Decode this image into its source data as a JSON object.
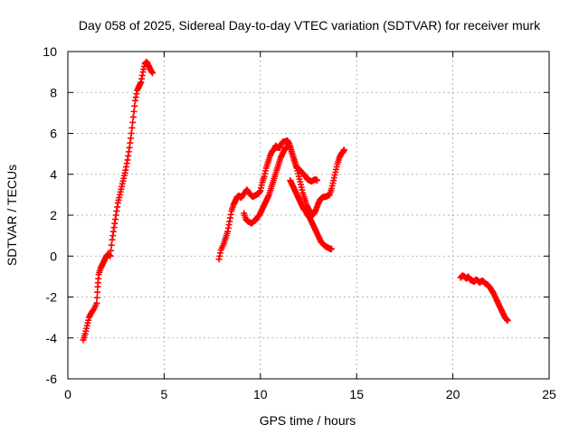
{
  "chart_data": {
    "type": "scatter",
    "title": "Day 058 of 2025, Sidereal Day-to-day VTEC variation (SDTVAR) for receiver murk",
    "xlabel": "GPS time / hours",
    "ylabel": "SDTVAR / TECUs",
    "xlim": [
      0,
      25
    ],
    "ylim": [
      -6,
      10
    ],
    "xticks": [
      0,
      5,
      10,
      15,
      20,
      25
    ],
    "yticks": [
      -6,
      -4,
      -2,
      0,
      2,
      4,
      6,
      8,
      10
    ],
    "grid": true,
    "marker": "+",
    "color": "#ff0000",
    "series": [
      {
        "name": "SDTVAR",
        "segments": [
          [
            [
              0.8,
              -4.1
            ],
            [
              0.9,
              -3.8
            ],
            [
              1.0,
              -3.4
            ],
            [
              1.1,
              -3.0
            ],
            [
              1.2,
              -2.8
            ],
            [
              1.35,
              -2.6
            ],
            [
              1.5,
              -2.3
            ],
            [
              1.55,
              -1.5
            ],
            [
              1.6,
              -0.9
            ],
            [
              1.7,
              -0.6
            ],
            [
              1.8,
              -0.4
            ],
            [
              1.9,
              -0.2
            ],
            [
              2.0,
              0.0
            ],
            [
              2.1,
              0.1
            ],
            [
              2.2,
              0.0
            ],
            [
              2.3,
              0.8
            ],
            [
              2.4,
              1.4
            ],
            [
              2.5,
              2.0
            ],
            [
              2.6,
              2.6
            ],
            [
              2.7,
              3.0
            ],
            [
              2.8,
              3.4
            ],
            [
              2.9,
              3.8
            ],
            [
              3.0,
              4.2
            ],
            [
              3.1,
              4.7
            ],
            [
              3.2,
              5.3
            ],
            [
              3.3,
              6.0
            ],
            [
              3.4,
              6.8
            ],
            [
              3.5,
              7.6
            ],
            [
              3.6,
              8.1
            ],
            [
              3.7,
              8.3
            ],
            [
              3.8,
              8.5
            ],
            [
              3.9,
              9.0
            ],
            [
              4.0,
              9.4
            ],
            [
              4.1,
              9.5
            ],
            [
              4.2,
              9.3
            ],
            [
              4.3,
              9.1
            ],
            [
              4.4,
              8.95
            ]
          ],
          [
            [
              7.85,
              -0.15
            ],
            [
              7.95,
              0.3
            ],
            [
              8.1,
              0.6
            ],
            [
              8.2,
              0.9
            ],
            [
              8.3,
              1.2
            ],
            [
              8.4,
              1.7
            ],
            [
              8.5,
              2.2
            ],
            [
              8.6,
              2.5
            ],
            [
              8.7,
              2.7
            ],
            [
              8.8,
              2.9
            ],
            [
              8.9,
              2.95
            ],
            [
              9.0,
              2.85
            ],
            [
              9.1,
              3.0
            ],
            [
              9.2,
              3.1
            ],
            [
              9.3,
              3.25
            ],
            [
              9.4,
              3.1
            ],
            [
              9.5,
              3.0
            ],
            [
              9.6,
              2.9
            ],
            [
              9.7,
              2.95
            ],
            [
              9.8,
              3.0
            ],
            [
              9.9,
              3.05
            ],
            [
              10.0,
              3.2
            ],
            [
              10.1,
              3.6
            ],
            [
              10.2,
              3.9
            ],
            [
              10.3,
              4.3
            ],
            [
              10.4,
              4.6
            ],
            [
              10.5,
              4.9
            ],
            [
              10.6,
              5.1
            ],
            [
              10.7,
              5.2
            ],
            [
              10.8,
              5.4
            ],
            [
              10.9,
              5.3
            ],
            [
              11.0,
              5.3
            ],
            [
              11.1,
              5.5
            ],
            [
              11.2,
              5.6
            ],
            [
              11.3,
              5.6
            ],
            [
              11.4,
              5.65
            ],
            [
              11.5,
              5.5
            ],
            [
              11.6,
              5.2
            ],
            [
              11.7,
              4.9
            ],
            [
              11.8,
              4.6
            ],
            [
              11.9,
              4.3
            ],
            [
              12.0,
              3.9
            ],
            [
              12.1,
              3.5
            ],
            [
              12.2,
              3.1
            ],
            [
              12.3,
              2.8
            ],
            [
              12.4,
              2.5
            ],
            [
              12.5,
              2.3
            ],
            [
              12.6,
              2.15
            ],
            [
              12.7,
              2.0
            ],
            [
              12.8,
              2.1
            ],
            [
              12.9,
              2.3
            ],
            [
              13.0,
              2.55
            ],
            [
              13.1,
              2.75
            ],
            [
              13.2,
              2.85
            ],
            [
              13.3,
              2.9
            ],
            [
              13.4,
              2.9
            ],
            [
              13.5,
              2.95
            ],
            [
              13.6,
              3.0
            ],
            [
              13.7,
              3.3
            ],
            [
              13.8,
              3.7
            ],
            [
              13.9,
              4.1
            ],
            [
              14.0,
              4.5
            ],
            [
              14.1,
              4.8
            ],
            [
              14.2,
              5.0
            ],
            [
              14.3,
              5.1
            ],
            [
              14.35,
              5.2
            ]
          ],
          [
            [
              9.15,
              2.1
            ],
            [
              9.25,
              1.8
            ],
            [
              9.35,
              1.7
            ],
            [
              9.45,
              1.65
            ],
            [
              9.55,
              1.6
            ],
            [
              9.65,
              1.7
            ],
            [
              9.75,
              1.75
            ],
            [
              9.85,
              1.9
            ],
            [
              9.95,
              2.0
            ],
            [
              10.05,
              2.2
            ],
            [
              10.15,
              2.4
            ],
            [
              10.25,
              2.6
            ],
            [
              10.35,
              2.8
            ],
            [
              10.45,
              3.0
            ],
            [
              10.55,
              3.3
            ],
            [
              10.65,
              3.6
            ],
            [
              10.75,
              3.9
            ],
            [
              10.85,
              4.2
            ],
            [
              10.95,
              4.5
            ],
            [
              11.05,
              4.8
            ],
            [
              11.15,
              5.0
            ],
            [
              11.25,
              5.2
            ],
            [
              11.35,
              5.3
            ],
            [
              11.45,
              5.4
            ],
            [
              11.55,
              5.3
            ],
            [
              11.65,
              5.0
            ],
            [
              11.75,
              4.7
            ],
            [
              11.85,
              4.4
            ],
            [
              11.95,
              4.3
            ],
            [
              12.05,
              4.2
            ],
            [
              12.15,
              4.1
            ],
            [
              12.25,
              4.0
            ],
            [
              12.35,
              3.9
            ],
            [
              12.45,
              3.75
            ],
            [
              12.55,
              3.7
            ],
            [
              12.65,
              3.65
            ],
            [
              12.75,
              3.7
            ],
            [
              12.85,
              3.75
            ],
            [
              12.95,
              3.7
            ]
          ],
          [
            [
              11.55,
              3.7
            ],
            [
              11.65,
              3.5
            ],
            [
              11.75,
              3.3
            ],
            [
              11.85,
              3.1
            ],
            [
              11.95,
              2.9
            ],
            [
              12.05,
              2.7
            ],
            [
              12.15,
              2.5
            ],
            [
              12.25,
              2.3
            ],
            [
              12.35,
              2.2
            ],
            [
              12.45,
              2.0
            ],
            [
              12.55,
              1.9
            ],
            [
              12.65,
              1.7
            ],
            [
              12.75,
              1.5
            ],
            [
              12.85,
              1.3
            ],
            [
              12.95,
              1.1
            ],
            [
              13.05,
              0.9
            ],
            [
              13.15,
              0.7
            ],
            [
              13.25,
              0.6
            ],
            [
              13.35,
              0.5
            ],
            [
              13.45,
              0.45
            ],
            [
              13.55,
              0.4
            ],
            [
              13.65,
              0.35
            ],
            [
              13.7,
              0.35
            ]
          ],
          [
            [
              20.4,
              -1.05
            ],
            [
              20.5,
              -0.95
            ],
            [
              20.6,
              -1.0
            ],
            [
              20.7,
              -1.1
            ],
            [
              20.8,
              -1.0
            ],
            [
              20.9,
              -1.15
            ],
            [
              21.0,
              -1.2
            ],
            [
              21.1,
              -1.25
            ],
            [
              21.2,
              -1.15
            ],
            [
              21.3,
              -1.2
            ],
            [
              21.4,
              -1.3
            ],
            [
              21.5,
              -1.2
            ],
            [
              21.6,
              -1.25
            ],
            [
              21.7,
              -1.35
            ],
            [
              21.8,
              -1.4
            ],
            [
              21.9,
              -1.5
            ],
            [
              22.0,
              -1.65
            ],
            [
              22.1,
              -1.8
            ],
            [
              22.2,
              -2.0
            ],
            [
              22.3,
              -2.2
            ],
            [
              22.4,
              -2.4
            ],
            [
              22.5,
              -2.6
            ],
            [
              22.6,
              -2.8
            ],
            [
              22.7,
              -3.0
            ],
            [
              22.8,
              -3.1
            ],
            [
              22.85,
              -3.15
            ]
          ]
        ]
      }
    ]
  }
}
